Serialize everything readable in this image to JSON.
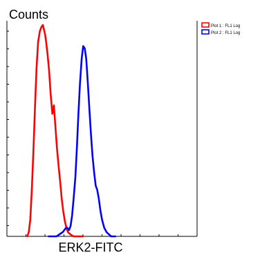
{
  "chart_data": {
    "type": "line",
    "ylabel": "Counts",
    "xlabel": "ERK2-FITC",
    "xlim": [
      0,
      100
    ],
    "ylim": [
      0,
      100
    ],
    "grid": false,
    "legend_position": "top-right",
    "series": [
      {
        "name": "Plot 1 : FL1 Log",
        "color": "#ff0000",
        "x": [
          10.7,
          11.5,
          12.3,
          13.1,
          14.0,
          14.8,
          15.6,
          16.4,
          17.3,
          18.1,
          18.9,
          19.7,
          20.2,
          20.6,
          21.4,
          22.2,
          23.0,
          23.9,
          24.7,
          25.5,
          26.3,
          27.2,
          28.0,
          28.8,
          29.6,
          30.5,
          31.3,
          32.1,
          33.3,
          35.0,
          36.6,
          38.3,
          40.0
        ],
        "y": [
          0,
          2,
          8,
          22,
          42,
          62,
          80,
          92,
          97,
          99,
          100,
          97,
          95,
          92,
          86,
          78,
          67,
          58,
          62,
          52,
          42,
          33,
          26,
          18,
          12,
          7,
          4,
          2,
          1,
          0,
          0,
          0,
          0
        ]
      },
      {
        "name": "Plot 2 : FL1 Log",
        "color": "#0000ff",
        "x": [
          22.0,
          24.0,
          26.1,
          27.7,
          29.4,
          30.2,
          31.0,
          31.8,
          32.7,
          33.5,
          34.3,
          35.1,
          36.0,
          36.8,
          37.6,
          38.4,
          39.3,
          40.1,
          40.9,
          41.7,
          42.6,
          43.4,
          44.2,
          45.0,
          45.9,
          46.7,
          47.5,
          48.3,
          49.2,
          50.0,
          51.2,
          52.4,
          53.6,
          54.8,
          57.0
        ],
        "y": [
          0,
          0,
          0,
          1,
          2,
          3,
          4,
          4,
          3,
          5,
          10,
          18,
          28,
          42,
          58,
          72,
          84,
          90,
          89,
          84,
          72,
          60,
          48,
          38,
          30,
          24,
          22,
          18,
          12,
          8,
          4,
          2,
          1,
          0,
          0
        ]
      }
    ]
  }
}
